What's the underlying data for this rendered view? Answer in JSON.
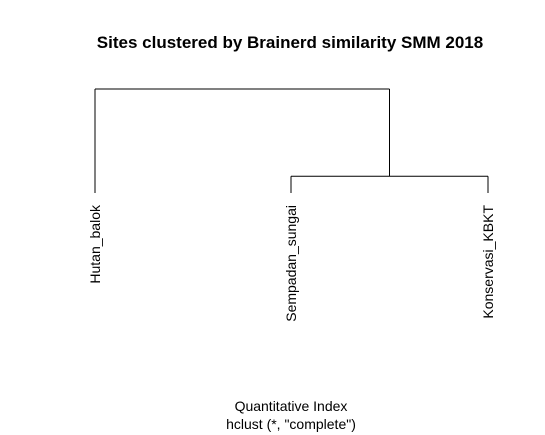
{
  "chart_data": {
    "type": "dendrogram",
    "title": "Sites clustered by Brainerd similarity SMM 2018",
    "xlabel": "Quantitative Index",
    "sublabel": "hclust (*, \"complete\")",
    "leaves": [
      "Hutan_balok",
      "Sempadan_sungai",
      "Konservasi_KBKT"
    ],
    "merges": [
      {
        "members": [
          "Sempadan_sungai",
          "Konservasi_KBKT"
        ],
        "height": 0.55
      },
      {
        "members": [
          "Hutan_balok",
          "Sempadan_sungai",
          "Konservasi_KBKT"
        ],
        "height": 1.0
      }
    ],
    "ylim": [
      0,
      1.0
    ],
    "yaxis_shown": false,
    "line_color": "#000000"
  }
}
